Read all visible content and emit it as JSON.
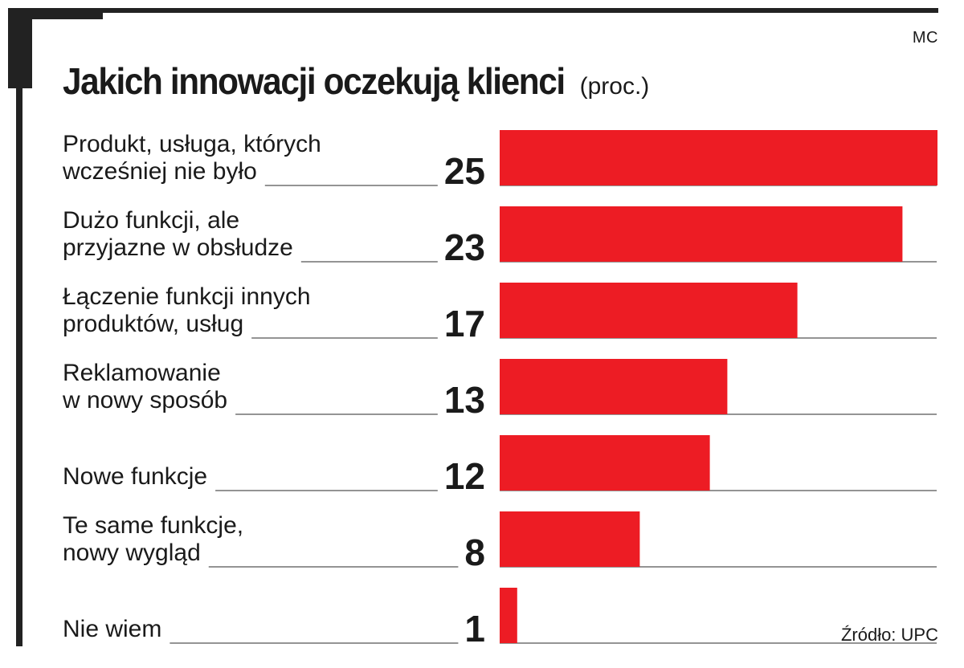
{
  "author": "MC",
  "source": "Źródło: UPC",
  "chart_data": {
    "type": "bar",
    "orientation": "horizontal",
    "title": "Jakich innowacji oczekują klienci",
    "subtitle": "(proc.)",
    "categories": [
      [
        "Produkt, usługa, których",
        "wcześniej nie było"
      ],
      [
        "Dużo funkcji, ale",
        "przyjazne w obsłudze"
      ],
      [
        "Łączenie funkcji innych",
        "produktów, usług"
      ],
      [
        "Reklamowanie",
        "w nowy sposób"
      ],
      [
        "",
        "Nowe funkcje"
      ],
      [
        "Te same funkcje,",
        "nowy wygląd"
      ],
      [
        "",
        "Nie wiem"
      ]
    ],
    "values": [
      25,
      23,
      17,
      13,
      12,
      8,
      1
    ],
    "xlim": [
      0,
      25
    ],
    "bar_color": "#ed1c24",
    "value_labels": true,
    "legend": "none"
  }
}
